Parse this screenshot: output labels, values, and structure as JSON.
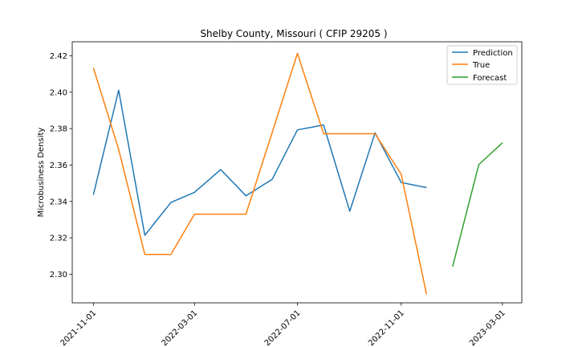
{
  "chart_data": {
    "type": "line",
    "title": "Shelby County, Missouri ( CFIP 29205 )",
    "xlabel": "",
    "ylabel": "Microbusiness Density",
    "grid": false,
    "legend_position": "upper right",
    "xlim": [
      "2021-10-07",
      "2023-03-24"
    ],
    "ylim": [
      2.2843,
      2.4277
    ],
    "x_ticks": [
      "2021-11-01",
      "2022-03-01",
      "2022-07-01",
      "2022-11-01",
      "2023-03-01"
    ],
    "y_ticks": [
      2.3,
      2.32,
      2.34,
      2.36,
      2.38,
      2.4,
      2.42
    ],
    "y_tick_labels": [
      "2.30",
      "2.32",
      "2.34",
      "2.36",
      "2.38",
      "2.40",
      "2.42"
    ],
    "series": [
      {
        "name": "Prediction",
        "color": "#1f77b4",
        "x": [
          "2021-11-01",
          "2021-12-01",
          "2022-01-01",
          "2022-02-01",
          "2022-03-01",
          "2022-04-01",
          "2022-05-01",
          "2022-06-01",
          "2022-07-01",
          "2022-08-01",
          "2022-09-01",
          "2022-10-01",
          "2022-11-01",
          "2022-12-01"
        ],
        "values": [
          2.3436,
          2.4011,
          2.3214,
          2.3394,
          2.345,
          2.3575,
          2.3431,
          2.3521,
          2.3793,
          2.382,
          2.3346,
          2.3777,
          2.3504,
          2.3476
        ]
      },
      {
        "name": "True",
        "color": "#ff7f0e",
        "x": [
          "2021-11-01",
          "2021-12-01",
          "2022-01-01",
          "2022-02-01",
          "2022-03-01",
          "2022-04-01",
          "2022-05-01",
          "2022-06-01",
          "2022-07-01",
          "2022-08-01",
          "2022-09-01",
          "2022-10-01",
          "2022-11-01",
          "2022-12-01"
        ],
        "values": [
          2.4134,
          2.3686,
          2.3109,
          2.3109,
          2.333,
          2.333,
          2.333,
          2.3778,
          2.4213,
          2.3772,
          2.3772,
          2.3772,
          2.3549,
          2.289
        ]
      },
      {
        "name": "Forecast",
        "color": "#2ca02c",
        "x": [
          "2023-01-01",
          "2023-02-01",
          "2023-03-01"
        ],
        "values": [
          2.3042,
          2.3602,
          2.3722
        ]
      }
    ]
  }
}
